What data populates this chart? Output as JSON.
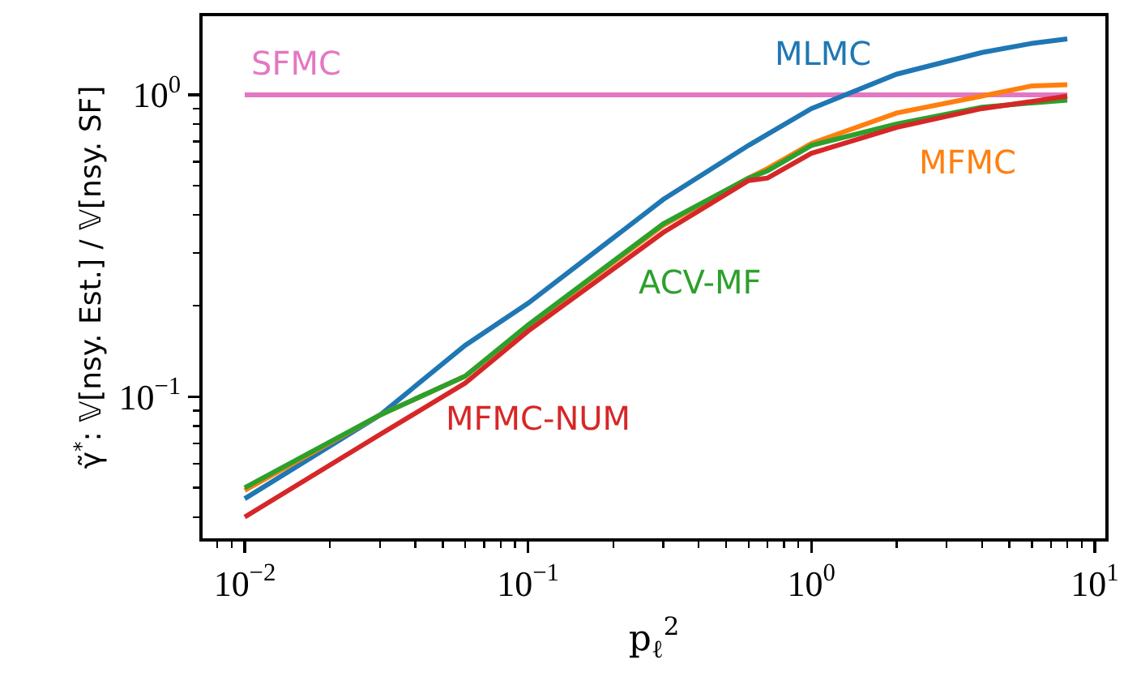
{
  "chart_data": {
    "type": "line",
    "xlabel": "p$_{ℓ}$$^{2}$",
    "ylabel": "γ̃$^{*}$: 𝕍[nsy. Est.] / 𝕍[nsy. SF]",
    "log": "xy",
    "grid": false,
    "legend": false,
    "line_style": "solid",
    "marker": "none",
    "xlim": [
      0.0071,
      10.9
    ],
    "ylim": [
      0.034,
      1.82
    ],
    "xticks": [
      {
        "value": 0.01,
        "label": "10$^{−2}$"
      },
      {
        "value": 0.1,
        "label": "10$^{−1}$"
      },
      {
        "value": 1,
        "label": "10$^{0}$"
      },
      {
        "value": 10,
        "label": "10$^{1}$"
      },
      {
        "value": 0.008,
        "label": null
      },
      {
        "value": 0.009,
        "label": null
      },
      {
        "value": 0.02,
        "label": null
      },
      {
        "value": 0.03,
        "label": null
      },
      {
        "value": 0.04,
        "label": null
      },
      {
        "value": 0.05,
        "label": null
      },
      {
        "value": 0.06,
        "label": null
      },
      {
        "value": 0.07,
        "label": null
      },
      {
        "value": 0.08,
        "label": null
      },
      {
        "value": 0.09,
        "label": null
      },
      {
        "value": 0.2,
        "label": null
      },
      {
        "value": 0.3,
        "label": null
      },
      {
        "value": 0.4,
        "label": null
      },
      {
        "value": 0.5,
        "label": null
      },
      {
        "value": 0.6,
        "label": null
      },
      {
        "value": 0.7,
        "label": null
      },
      {
        "value": 0.8,
        "label": null
      },
      {
        "value": 0.9,
        "label": null
      },
      {
        "value": 2,
        "label": null
      },
      {
        "value": 3,
        "label": null
      },
      {
        "value": 4,
        "label": null
      },
      {
        "value": 5,
        "label": null
      },
      {
        "value": 6,
        "label": null
      },
      {
        "value": 7,
        "label": null
      },
      {
        "value": 8,
        "label": null
      },
      {
        "value": 9,
        "label": null
      }
    ],
    "yticks": [
      {
        "value": 0.1,
        "label": "10$^{−1}$"
      },
      {
        "value": 1,
        "label": "10$^{0}$"
      },
      {
        "value": 0.04,
        "label": null
      },
      {
        "value": 0.05,
        "label": null
      },
      {
        "value": 0.06,
        "label": null
      },
      {
        "value": 0.07,
        "label": null
      },
      {
        "value": 0.08,
        "label": null
      },
      {
        "value": 0.09,
        "label": null
      },
      {
        "value": 0.2,
        "label": null
      },
      {
        "value": 0.3,
        "label": null
      },
      {
        "value": 0.4,
        "label": null
      },
      {
        "value": 0.5,
        "label": null
      },
      {
        "value": 0.6,
        "label": null
      },
      {
        "value": 0.7,
        "label": null
      },
      {
        "value": 0.8,
        "label": null
      },
      {
        "value": 0.9,
        "label": null
      }
    ],
    "x": [
      0.01,
      0.03,
      0.06,
      0.1,
      0.3,
      0.6,
      0.7,
      1,
      2,
      4,
      6,
      8
    ],
    "series": [
      {
        "name": "SFMC",
        "color": "#e377c2",
        "x": [
          0.01,
          8
        ],
        "values": [
          1,
          1
        ]
      },
      {
        "name": "MLMC",
        "color": "#1f77b4",
        "values": [
          0.046,
          0.087,
          0.148,
          0.204,
          0.45,
          0.68,
          0.74,
          0.9,
          1.17,
          1.38,
          1.48,
          1.53
        ]
      },
      {
        "name": "MFMC",
        "color": "#ff7f0e",
        "values": [
          0.049,
          0.087,
          0.117,
          0.172,
          0.37,
          0.53,
          0.57,
          0.69,
          0.87,
          0.99,
          1.07,
          1.08
        ]
      },
      {
        "name": "ACV-MF",
        "color": "#2ca02c",
        "values": [
          0.05,
          0.087,
          0.117,
          0.173,
          0.374,
          0.53,
          0.56,
          0.68,
          0.8,
          0.91,
          0.94,
          0.96
        ]
      },
      {
        "name": "MFMC-NUM",
        "color": "#d62728",
        "values": [
          0.04,
          0.075,
          0.111,
          0.165,
          0.35,
          0.52,
          0.53,
          0.64,
          0.78,
          0.9,
          0.95,
          0.99
        ]
      }
    ]
  }
}
